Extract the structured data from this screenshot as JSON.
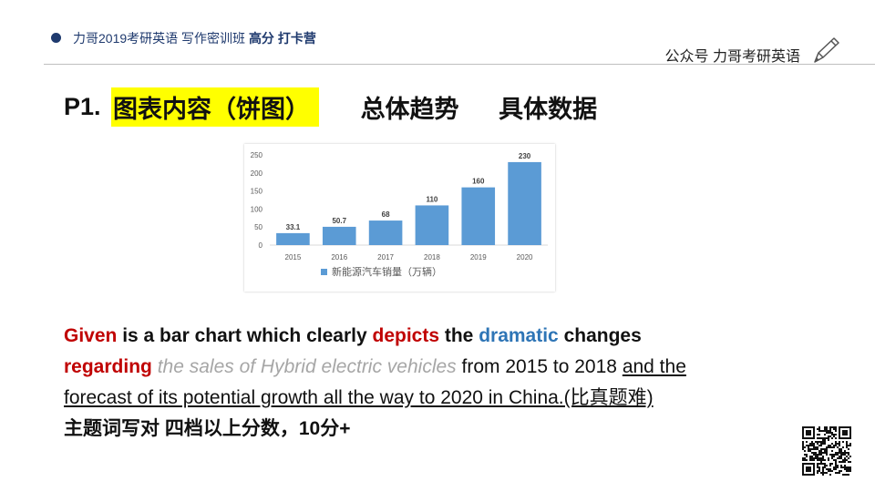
{
  "header": {
    "brand_normal": "力哥2019考研英语 写作密训班 ",
    "brand_bold": "高分 打卡营",
    "public_account": "公众号 力哥考研英语"
  },
  "title": {
    "prefix": "P1.",
    "highlight": "图表内容（饼图）",
    "part2": "总体趋势",
    "part3": "具体数据"
  },
  "chart_data": {
    "type": "bar",
    "categories": [
      "2015",
      "2016",
      "2017",
      "2018",
      "2019",
      "2020"
    ],
    "series": [
      {
        "name": "新能源汽车销量（万辆）",
        "values": [
          33.1,
          50.7,
          68,
          110,
          160,
          230
        ]
      }
    ],
    "data_labels": [
      "33.1",
      "50.7",
      "68",
      "110",
      "160",
      "230"
    ],
    "y_ticks": [
      "0",
      "50",
      "100",
      "150",
      "200",
      "250"
    ],
    "ylim": [
      0,
      250
    ],
    "grid": false,
    "legend_position": "bottom",
    "color": "#5b9bd5"
  },
  "paragraph": {
    "w1": "Given",
    "w2": " is a bar chart which clearly ",
    "w3": "depicts",
    "w4": " the ",
    "w5": "dramatic",
    "w6": " changes",
    "w7": "regarding",
    "w8": " ",
    "w9": "the sales of Hybrid electric vehicles",
    "w10": " from 2015 to 2018 ",
    "w11": "and the",
    "w12": "forecast of its potential growth all the way to 2020 in China.(比真题难)",
    "w13": "主题词写对 四档以上分数，10分+"
  },
  "colors": {
    "brand": "#1f3a6e",
    "highlight": "#ffff00",
    "keyword_red": "#c00000",
    "keyword_blue": "#2e75b6",
    "muted_gray": "#a6a6a6",
    "bar": "#5b9bd5"
  },
  "icons": {
    "pen": "pen-icon",
    "qr": "qr-code-icon"
  }
}
